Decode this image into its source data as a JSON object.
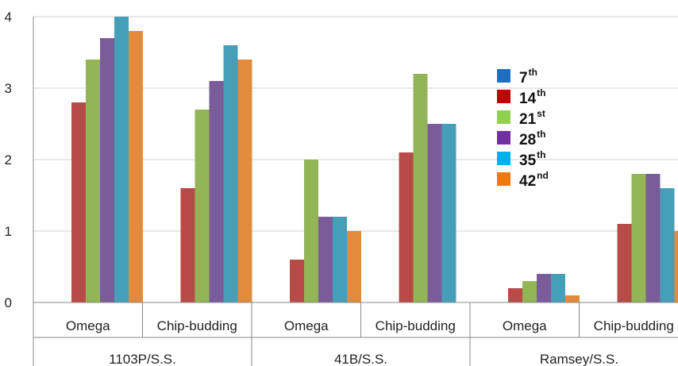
{
  "chart_data": {
    "type": "bar",
    "ylim": [
      0,
      4
    ],
    "yticks": [
      "0",
      "1",
      "2",
      "3",
      "4"
    ],
    "grid": "horizontal",
    "legend_position": "right",
    "categories": [
      "Omega",
      "Chip-budding",
      "Omega",
      "Chip-budding",
      "Omega",
      "Chip-budding"
    ],
    "groups": [
      {
        "label": "1103P/S.S.",
        "span": [
          0,
          1
        ]
      },
      {
        "label": "41B/S.S.",
        "span": [
          2,
          3
        ]
      },
      {
        "label": "Ramsey/S.S.",
        "span": [
          4,
          5
        ]
      }
    ],
    "series": [
      {
        "name": "7",
        "suffix": "th",
        "color": "#3f7dbf",
        "values": [
          0,
          0,
          0,
          0,
          0,
          0
        ]
      },
      {
        "name": "14",
        "suffix": "th",
        "color": "#b84a47",
        "values": [
          2.8,
          1.6,
          0.6,
          2.1,
          0.2,
          1.1
        ]
      },
      {
        "name": "21",
        "suffix": "st",
        "color": "#93b557",
        "values": [
          3.4,
          2.7,
          2.0,
          3.2,
          0.3,
          1.8
        ]
      },
      {
        "name": "28",
        "suffix": "th",
        "color": "#7a5c9b",
        "values": [
          3.7,
          3.1,
          1.2,
          2.5,
          0.4,
          1.8
        ]
      },
      {
        "name": "35",
        "suffix": "th",
        "color": "#469fb8",
        "values": [
          4.0,
          3.6,
          1.2,
          2.5,
          0.4,
          1.6
        ]
      },
      {
        "name": "42",
        "suffix": "nd",
        "color": "#e38b3c",
        "values": [
          3.8,
          3.4,
          1.0,
          0,
          0.1,
          1.0
        ]
      }
    ],
    "legend_swatches": [
      "#1f6fc1",
      "#c00000",
      "#92d050",
      "#7030a0",
      "#00b0f0",
      "#f07a10"
    ]
  }
}
